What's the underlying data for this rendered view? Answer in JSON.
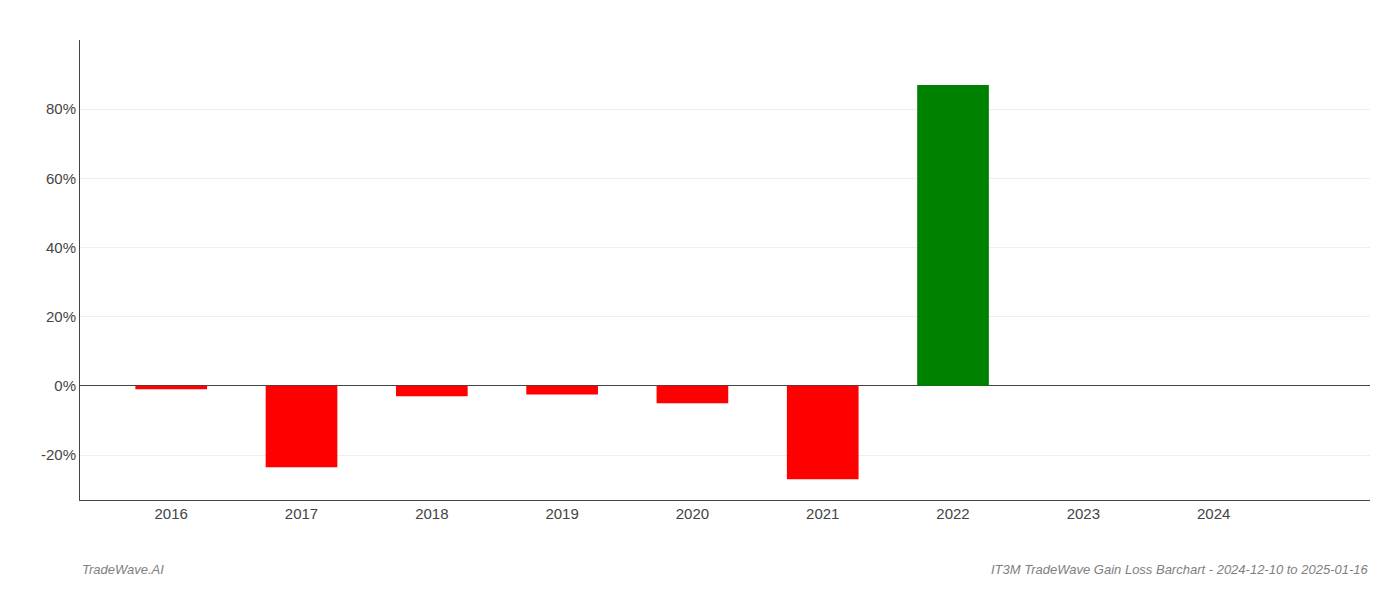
{
  "chart_data": {
    "type": "bar",
    "x": [
      2016,
      2017,
      2018,
      2019,
      2020,
      2021,
      2022,
      2023,
      2024
    ],
    "values": [
      -0.01,
      -0.235,
      -0.03,
      -0.025,
      -0.05,
      -0.27,
      0.87,
      0.0,
      0.0
    ],
    "colors": [
      "#ff0000",
      "#ff0000",
      "#ff0000",
      "#ff0000",
      "#ff0000",
      "#ff0000",
      "#008000",
      "#008000",
      "#008000"
    ],
    "xlim": [
      2015.3,
      2025.2
    ],
    "xticks": [
      2016,
      2017,
      2018,
      2019,
      2020,
      2021,
      2022,
      2023,
      2024
    ],
    "ylim": [
      -0.33,
      1.0
    ],
    "yticks": [
      {
        "value": -0.2,
        "label": "-20%"
      },
      {
        "value": 0.0,
        "label": "0%"
      },
      {
        "value": 0.2,
        "label": "20%"
      },
      {
        "value": 0.4,
        "label": "40%"
      },
      {
        "value": 0.6,
        "label": "60%"
      },
      {
        "value": 0.8,
        "label": "80%"
      }
    ],
    "grid": "y",
    "annotations": [
      "TradeWave.AI",
      "IT3M TradeWave Gain Loss Barchart - 2024-12-10 to 2025-01-16"
    ]
  }
}
